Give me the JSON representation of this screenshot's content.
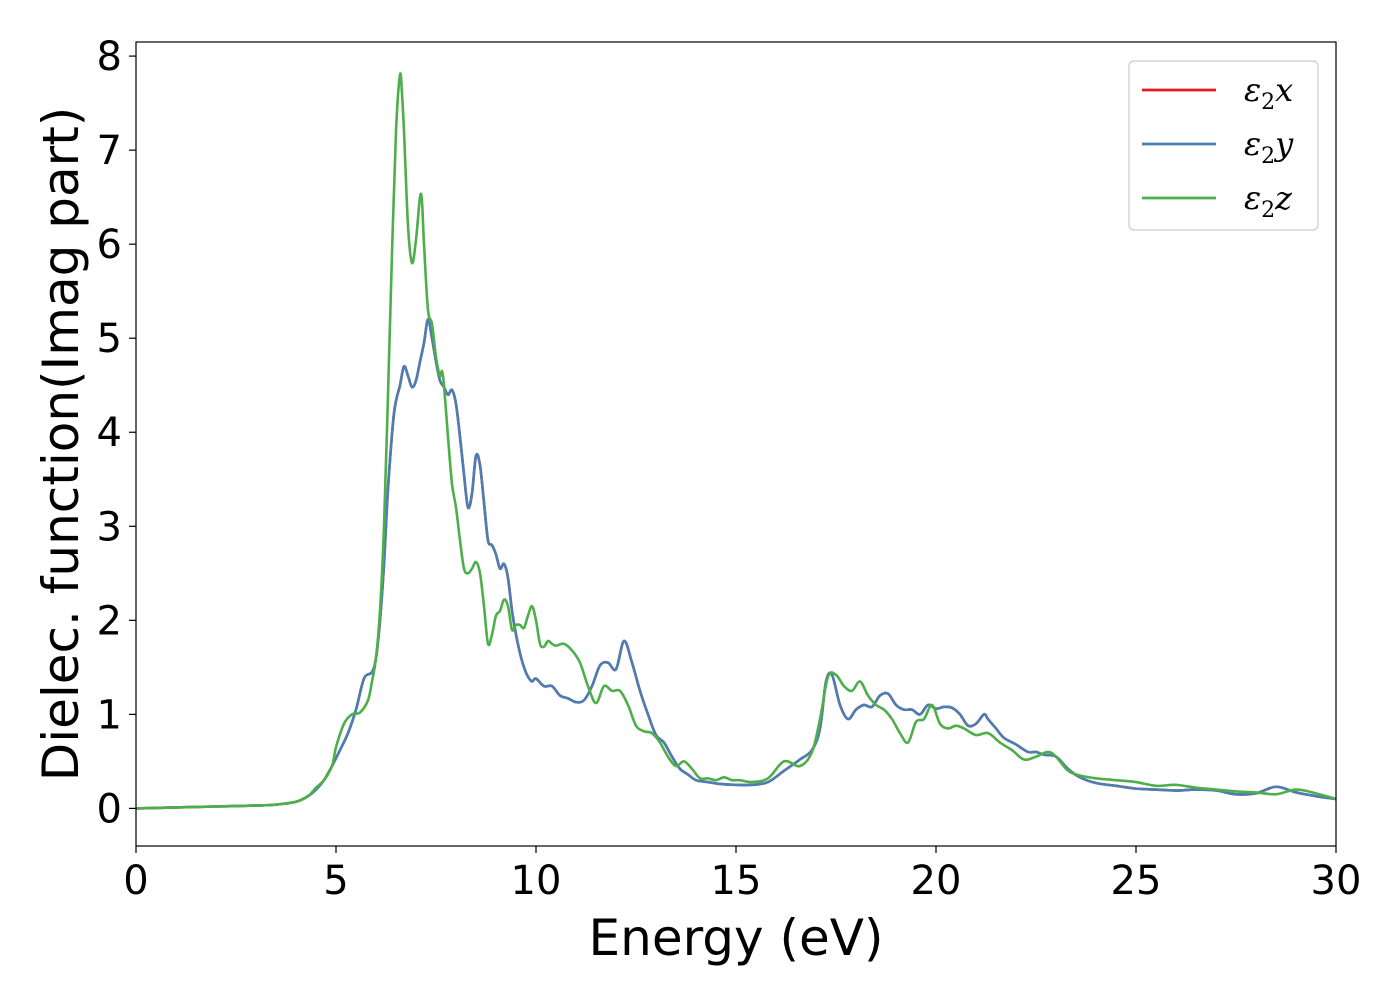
{
  "chart_data": {
    "type": "line",
    "title": "",
    "xlabel": "Energy (eV)",
    "ylabel": "Dielec. function(Imag part)",
    "xlim": [
      0,
      30
    ],
    "ylim": [
      -0.4,
      8.15
    ],
    "xticks": [
      0,
      5,
      10,
      15,
      20,
      25,
      30
    ],
    "yticks": [
      0,
      1,
      2,
      3,
      4,
      5,
      6,
      7,
      8
    ],
    "grid": false,
    "legend_position": "top-right",
    "series": [
      {
        "name": "ε2x",
        "legend": {
          "base": "ε",
          "sub": "2",
          "suffix": "x"
        },
        "color": "#e41a1c",
        "x": [
          0,
          1,
          2,
          3,
          3.5,
          4,
          4.3,
          4.5,
          4.7,
          4.9,
          5.1,
          5.3,
          5.5,
          5.7,
          5.9,
          6.0,
          6.1,
          6.2,
          6.3,
          6.45,
          6.6,
          6.7,
          6.8,
          6.9,
          7.0,
          7.1,
          7.2,
          7.3,
          7.4,
          7.5,
          7.6,
          7.7,
          7.8,
          7.9,
          8.0,
          8.1,
          8.2,
          8.3,
          8.4,
          8.5,
          8.6,
          8.7,
          8.8,
          8.9,
          9.0,
          9.1,
          9.2,
          9.3,
          9.4,
          9.5,
          9.6,
          9.7,
          9.8,
          9.9,
          10.0,
          10.2,
          10.4,
          10.6,
          10.8,
          11.0,
          11.2,
          11.4,
          11.6,
          11.8,
          12.0,
          12.2,
          12.4,
          12.6,
          12.8,
          13.0,
          13.2,
          13.4,
          13.6,
          13.8,
          14.0,
          14.3,
          14.6,
          15.0,
          15.4,
          15.8,
          16.2,
          16.6,
          16.9,
          17.1,
          17.25,
          17.4,
          17.6,
          17.8,
          18.0,
          18.2,
          18.4,
          18.6,
          18.8,
          19.0,
          19.2,
          19.4,
          19.6,
          19.8,
          20.0,
          20.2,
          20.4,
          20.6,
          20.8,
          21.0,
          21.2,
          21.3,
          21.5,
          21.7,
          22.0,
          22.3,
          22.5,
          22.7,
          23.0,
          23.3,
          23.6,
          24.0,
          24.5,
          25.0,
          25.5,
          26.0,
          26.5,
          27.0,
          27.5,
          28.0,
          28.5,
          29.0,
          29.5,
          30.0
        ],
        "y": [
          0.0,
          0.01,
          0.02,
          0.03,
          0.04,
          0.07,
          0.13,
          0.2,
          0.3,
          0.45,
          0.62,
          0.8,
          1.05,
          1.38,
          1.45,
          1.6,
          2.0,
          2.6,
          3.4,
          4.2,
          4.5,
          4.7,
          4.6,
          4.48,
          4.55,
          4.75,
          4.95,
          5.2,
          5.0,
          4.75,
          4.55,
          4.48,
          4.4,
          4.45,
          4.3,
          3.95,
          3.55,
          3.2,
          3.35,
          3.75,
          3.65,
          3.25,
          2.85,
          2.8,
          2.7,
          2.55,
          2.6,
          2.45,
          2.1,
          1.85,
          1.65,
          1.5,
          1.4,
          1.35,
          1.38,
          1.3,
          1.3,
          1.2,
          1.17,
          1.13,
          1.15,
          1.3,
          1.52,
          1.55,
          1.48,
          1.78,
          1.55,
          1.25,
          1.0,
          0.78,
          0.7,
          0.55,
          0.42,
          0.36,
          0.3,
          0.28,
          0.26,
          0.25,
          0.25,
          0.28,
          0.4,
          0.52,
          0.62,
          0.85,
          1.35,
          1.42,
          1.1,
          0.95,
          1.05,
          1.1,
          1.08,
          1.2,
          1.22,
          1.1,
          1.05,
          1.05,
          1.0,
          1.1,
          1.06,
          1.08,
          1.07,
          1.0,
          0.88,
          0.9,
          1.0,
          0.95,
          0.85,
          0.75,
          0.68,
          0.6,
          0.6,
          0.57,
          0.55,
          0.42,
          0.33,
          0.27,
          0.24,
          0.21,
          0.2,
          0.19,
          0.2,
          0.19,
          0.15,
          0.16,
          0.23,
          0.17,
          0.13,
          0.1
        ]
      },
      {
        "name": "ε2y",
        "legend": {
          "base": "ε",
          "sub": "2",
          "suffix": "y"
        },
        "color": "#4a7fb5",
        "x": [
          0,
          1,
          2,
          3,
          3.5,
          4,
          4.3,
          4.5,
          4.7,
          4.9,
          5.1,
          5.3,
          5.5,
          5.7,
          5.9,
          6.0,
          6.1,
          6.2,
          6.3,
          6.45,
          6.6,
          6.7,
          6.8,
          6.9,
          7.0,
          7.1,
          7.2,
          7.3,
          7.4,
          7.5,
          7.6,
          7.7,
          7.8,
          7.9,
          8.0,
          8.1,
          8.2,
          8.3,
          8.4,
          8.5,
          8.6,
          8.7,
          8.8,
          8.9,
          9.0,
          9.1,
          9.2,
          9.3,
          9.4,
          9.5,
          9.6,
          9.7,
          9.8,
          9.9,
          10.0,
          10.2,
          10.4,
          10.6,
          10.8,
          11.0,
          11.2,
          11.4,
          11.6,
          11.8,
          12.0,
          12.2,
          12.4,
          12.6,
          12.8,
          13.0,
          13.2,
          13.4,
          13.6,
          13.8,
          14.0,
          14.3,
          14.6,
          15.0,
          15.4,
          15.8,
          16.2,
          16.6,
          16.9,
          17.1,
          17.25,
          17.4,
          17.6,
          17.8,
          18.0,
          18.2,
          18.4,
          18.6,
          18.8,
          19.0,
          19.2,
          19.4,
          19.6,
          19.8,
          20.0,
          20.2,
          20.4,
          20.6,
          20.8,
          21.0,
          21.2,
          21.3,
          21.5,
          21.7,
          22.0,
          22.3,
          22.5,
          22.7,
          23.0,
          23.3,
          23.6,
          24.0,
          24.5,
          25.0,
          25.5,
          26.0,
          26.5,
          27.0,
          27.5,
          28.0,
          28.5,
          29.0,
          29.5,
          30.0
        ],
        "y": [
          0.0,
          0.01,
          0.02,
          0.03,
          0.04,
          0.07,
          0.13,
          0.2,
          0.3,
          0.45,
          0.62,
          0.8,
          1.05,
          1.38,
          1.45,
          1.6,
          2.0,
          2.6,
          3.4,
          4.2,
          4.5,
          4.7,
          4.6,
          4.48,
          4.55,
          4.75,
          4.95,
          5.2,
          5.0,
          4.75,
          4.55,
          4.48,
          4.4,
          4.45,
          4.3,
          3.95,
          3.55,
          3.2,
          3.35,
          3.75,
          3.65,
          3.25,
          2.85,
          2.8,
          2.7,
          2.55,
          2.6,
          2.45,
          2.1,
          1.85,
          1.65,
          1.5,
          1.4,
          1.35,
          1.38,
          1.3,
          1.3,
          1.2,
          1.17,
          1.13,
          1.15,
          1.3,
          1.52,
          1.55,
          1.48,
          1.78,
          1.55,
          1.25,
          1.0,
          0.78,
          0.7,
          0.55,
          0.42,
          0.36,
          0.3,
          0.28,
          0.26,
          0.25,
          0.25,
          0.28,
          0.4,
          0.52,
          0.62,
          0.85,
          1.35,
          1.42,
          1.1,
          0.95,
          1.05,
          1.1,
          1.08,
          1.2,
          1.22,
          1.1,
          1.05,
          1.05,
          1.0,
          1.1,
          1.06,
          1.08,
          1.07,
          1.0,
          0.88,
          0.9,
          1.0,
          0.95,
          0.85,
          0.75,
          0.68,
          0.6,
          0.6,
          0.57,
          0.55,
          0.42,
          0.33,
          0.27,
          0.24,
          0.21,
          0.2,
          0.19,
          0.2,
          0.19,
          0.15,
          0.16,
          0.23,
          0.17,
          0.13,
          0.1
        ]
      },
      {
        "name": "ε2z",
        "legend": {
          "base": "ε",
          "sub": "2",
          "suffix": "z"
        },
        "color": "#4daf4a",
        "x": [
          0,
          1,
          2,
          3,
          3.5,
          4,
          4.3,
          4.5,
          4.7,
          4.9,
          5.0,
          5.2,
          5.4,
          5.6,
          5.8,
          5.9,
          6.0,
          6.1,
          6.2,
          6.3,
          6.4,
          6.5,
          6.6,
          6.65,
          6.7,
          6.8,
          6.9,
          7.0,
          7.1,
          7.15,
          7.2,
          7.3,
          7.4,
          7.5,
          7.6,
          7.65,
          7.7,
          7.8,
          7.9,
          8.0,
          8.1,
          8.2,
          8.3,
          8.4,
          8.5,
          8.6,
          8.7,
          8.8,
          8.9,
          9.0,
          9.1,
          9.2,
          9.3,
          9.4,
          9.5,
          9.6,
          9.7,
          9.8,
          9.9,
          10.0,
          10.1,
          10.2,
          10.3,
          10.4,
          10.5,
          10.7,
          10.9,
          11.1,
          11.3,
          11.5,
          11.7,
          11.9,
          12.1,
          12.3,
          12.5,
          12.7,
          12.9,
          13.1,
          13.3,
          13.5,
          13.7,
          13.9,
          14.1,
          14.3,
          14.5,
          14.7,
          14.9,
          15.1,
          15.4,
          15.8,
          16.2,
          16.6,
          16.9,
          17.1,
          17.3,
          17.5,
          17.7,
          17.9,
          18.1,
          18.3,
          18.5,
          18.7,
          18.9,
          19.1,
          19.3,
          19.5,
          19.7,
          19.9,
          20.1,
          20.3,
          20.5,
          20.7,
          21.0,
          21.3,
          21.6,
          21.9,
          22.2,
          22.5,
          22.8,
          23.0,
          23.3,
          23.6,
          24.0,
          24.5,
          25.0,
          25.5,
          26.0,
          26.5,
          27.0,
          27.5,
          28.0,
          28.5,
          29.0,
          29.5,
          30.0
        ],
        "y": [
          0.0,
          0.01,
          0.02,
          0.03,
          0.04,
          0.07,
          0.13,
          0.22,
          0.3,
          0.45,
          0.65,
          0.9,
          1.0,
          1.02,
          1.15,
          1.35,
          1.6,
          2.1,
          3.0,
          4.4,
          5.9,
          7.2,
          7.8,
          7.6,
          7.2,
          6.2,
          5.8,
          6.05,
          6.5,
          6.45,
          6.0,
          5.3,
          5.15,
          4.8,
          4.6,
          4.65,
          4.5,
          3.95,
          3.45,
          3.2,
          2.85,
          2.55,
          2.5,
          2.55,
          2.62,
          2.5,
          2.15,
          1.75,
          1.85,
          2.05,
          2.1,
          2.22,
          2.15,
          1.9,
          1.95,
          1.95,
          1.92,
          2.05,
          2.15,
          2.0,
          1.75,
          1.72,
          1.78,
          1.75,
          1.73,
          1.75,
          1.68,
          1.55,
          1.3,
          1.12,
          1.3,
          1.25,
          1.25,
          1.1,
          0.88,
          0.82,
          0.8,
          0.7,
          0.55,
          0.45,
          0.5,
          0.42,
          0.32,
          0.32,
          0.3,
          0.33,
          0.3,
          0.3,
          0.28,
          0.32,
          0.5,
          0.45,
          0.6,
          0.95,
          1.4,
          1.42,
          1.3,
          1.25,
          1.35,
          1.2,
          1.1,
          1.05,
          0.95,
          0.8,
          0.7,
          0.92,
          0.95,
          1.1,
          0.9,
          0.85,
          0.88,
          0.85,
          0.78,
          0.8,
          0.7,
          0.62,
          0.52,
          0.55,
          0.6,
          0.55,
          0.4,
          0.35,
          0.32,
          0.3,
          0.28,
          0.24,
          0.25,
          0.22,
          0.2,
          0.18,
          0.17,
          0.15,
          0.2,
          0.16,
          0.1
        ]
      }
    ]
  }
}
